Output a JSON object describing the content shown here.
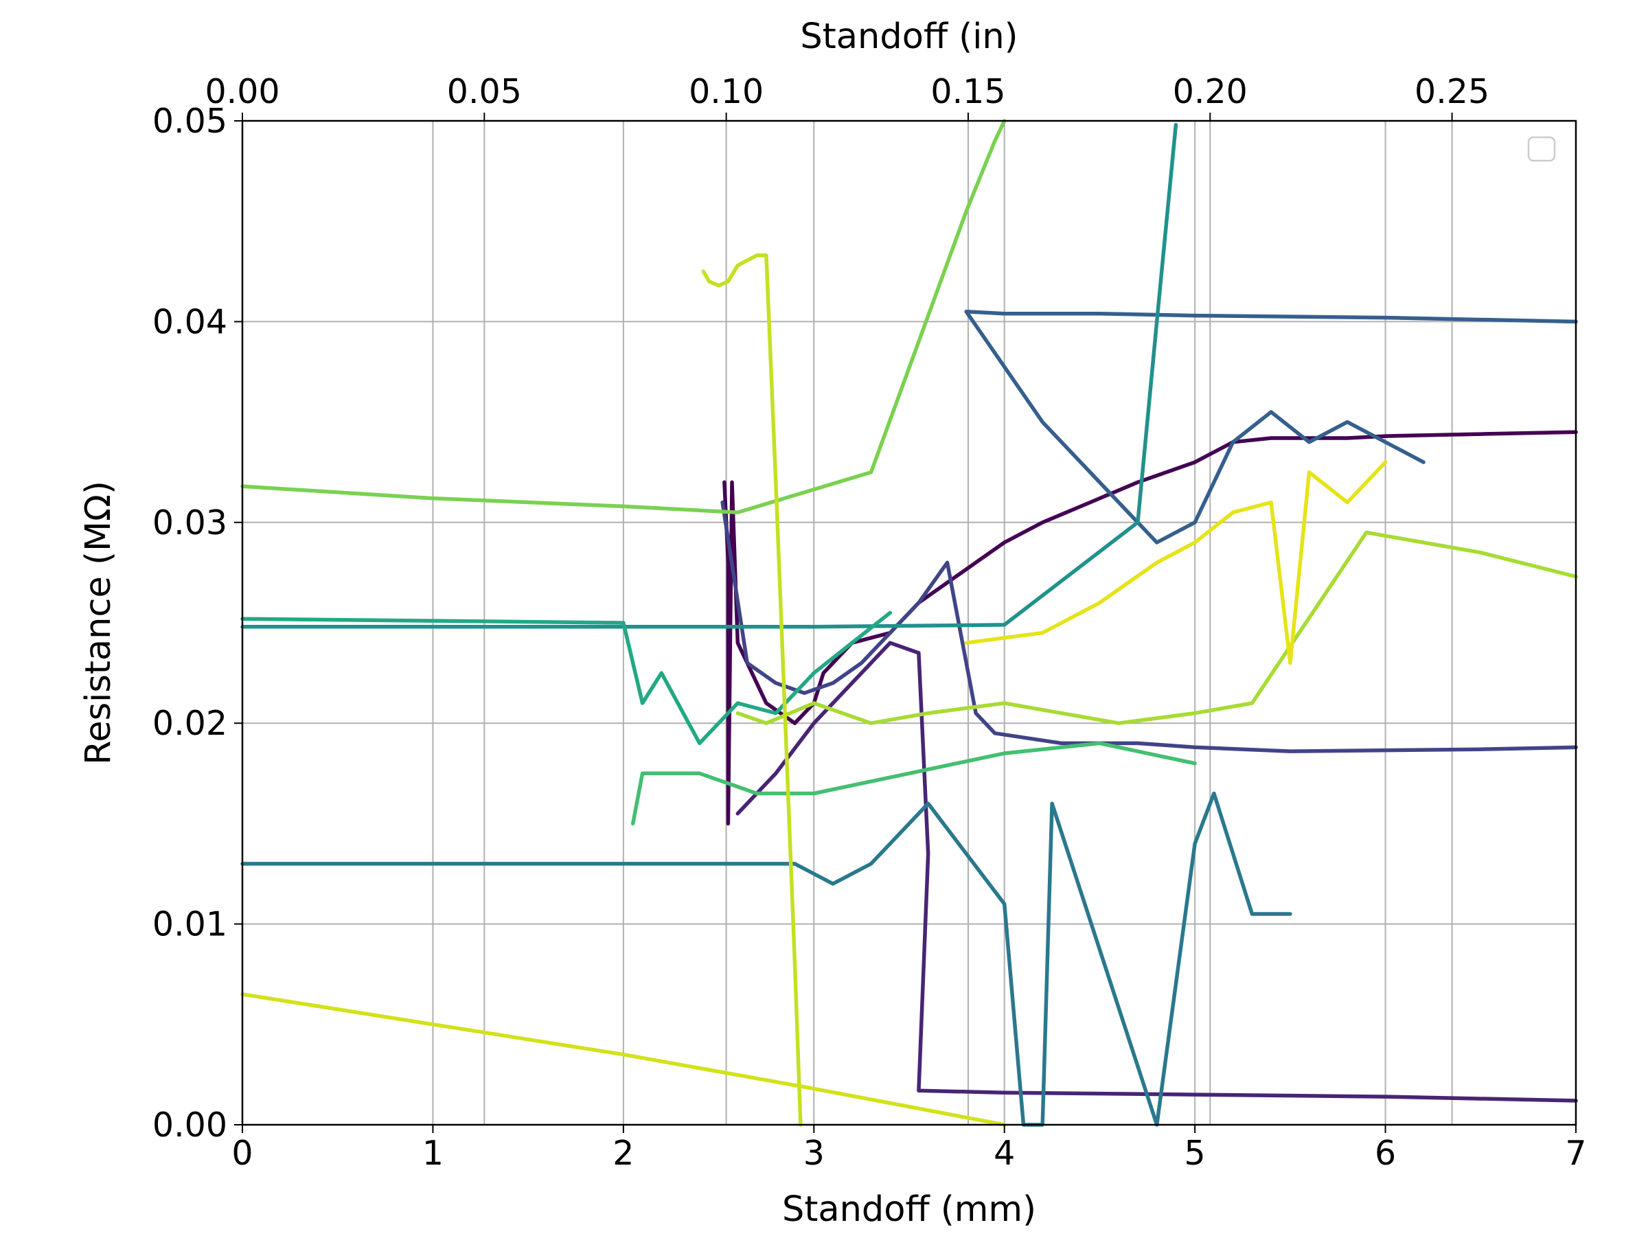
{
  "chart_data": {
    "type": "line",
    "title": "",
    "xlabel": "Standoff (mm)",
    "x2label": "Standoff (in)",
    "ylabel": "Resistance (MΩ)",
    "xlim": [
      0,
      7
    ],
    "ylim": [
      0,
      0.05
    ],
    "x2lim": [
      0,
      0.2756
    ],
    "xticks": [
      "0",
      "1",
      "2",
      "3",
      "4",
      "5",
      "6",
      "7"
    ],
    "x2ticks": [
      "0.00",
      "0.05",
      "0.10",
      "0.15",
      "0.20",
      "0.25"
    ],
    "yticks": [
      "0.00",
      "0.01",
      "0.02",
      "0.03",
      "0.04",
      "0.05"
    ],
    "grid": true,
    "legend": {
      "placement": "top-right",
      "entries": []
    },
    "colormap": "viridis",
    "series": [
      {
        "color": "#440154",
        "x": [
          2.53,
          2.55,
          2.55,
          2.57,
          2.6,
          2.75,
          2.9,
          3.0,
          3.05,
          3.2,
          3.4,
          3.55,
          3.7,
          3.85,
          4.0,
          4.2,
          4.45,
          4.7,
          5.0,
          5.2,
          5.4,
          5.6,
          5.8,
          6.0,
          6.5,
          7.0
        ],
        "y": [
          0.032,
          0.028,
          0.015,
          0.032,
          0.024,
          0.021,
          0.02,
          0.021,
          0.0225,
          0.024,
          0.0245,
          0.026,
          0.027,
          0.028,
          0.029,
          0.03,
          0.031,
          0.032,
          0.033,
          0.034,
          0.0342,
          0.0342,
          0.0342,
          0.0343,
          0.0344,
          0.0345
        ]
      },
      {
        "color": "#482475",
        "x": [
          2.6,
          2.8,
          3.0,
          3.2,
          3.4,
          3.55,
          3.6,
          3.55,
          4.0,
          5.0,
          6.0,
          7.0
        ],
        "y": [
          0.0155,
          0.0175,
          0.02,
          0.022,
          0.024,
          0.0235,
          0.0135,
          0.0017,
          0.0016,
          0.0015,
          0.0014,
          0.0012
        ]
      },
      {
        "color": "#414487",
        "x": [
          2.52,
          2.65,
          2.8,
          2.95,
          3.1,
          3.25,
          3.4,
          3.55,
          3.7,
          3.85,
          3.95,
          4.3,
          4.7,
          5.0,
          5.5,
          6.5,
          7.0
        ],
        "y": [
          0.031,
          0.023,
          0.022,
          0.0215,
          0.022,
          0.023,
          0.0245,
          0.026,
          0.028,
          0.0205,
          0.0195,
          0.019,
          0.019,
          0.0188,
          0.0186,
          0.0187,
          0.0188
        ]
      },
      {
        "color": "#355f8d",
        "x": [
          7.0,
          6.0,
          5.0,
          4.5,
          4.0,
          3.8,
          4.2,
          4.5,
          4.8,
          5.0,
          5.1,
          5.2,
          5.4,
          5.6,
          5.8,
          6.0,
          6.2
        ],
        "y": [
          0.04,
          0.0402,
          0.0403,
          0.0404,
          0.0404,
          0.0405,
          0.035,
          0.032,
          0.029,
          0.03,
          0.032,
          0.034,
          0.0355,
          0.034,
          0.035,
          0.034,
          0.033
        ]
      },
      {
        "color": "#2a788e",
        "x": [
          0.0,
          1.0,
          2.0,
          2.7,
          2.9,
          3.0,
          3.1,
          3.3,
          3.6,
          4.0,
          4.1,
          4.2,
          4.25,
          4.8,
          5.0,
          5.1,
          5.3,
          5.5
        ],
        "y": [
          0.013,
          0.013,
          0.013,
          0.013,
          0.013,
          0.0125,
          0.012,
          0.013,
          0.016,
          0.011,
          0.0,
          0.0,
          0.016,
          0.0,
          0.014,
          0.0165,
          0.0105,
          0.0105
        ]
      },
      {
        "color": "#21918c",
        "x": [
          0.0,
          1.0,
          2.0,
          3.0,
          4.0,
          4.7,
          4.8,
          4.9
        ],
        "y": [
          0.0248,
          0.0248,
          0.0248,
          0.0248,
          0.0249,
          0.03,
          0.04,
          0.0498
        ]
      },
      {
        "color": "#22a884",
        "x": [
          0.0,
          1.0,
          2.0,
          2.1,
          2.2,
          2.4,
          2.6,
          2.8,
          3.0,
          3.2,
          3.4
        ],
        "y": [
          0.0252,
          0.0251,
          0.025,
          0.021,
          0.0225,
          0.019,
          0.021,
          0.0205,
          0.0225,
          0.024,
          0.0255
        ]
      },
      {
        "color": "#44bf70",
        "x": [
          2.05,
          2.1,
          2.4,
          2.7,
          3.0,
          3.5,
          4.0,
          4.5,
          5.0
        ],
        "y": [
          0.015,
          0.0175,
          0.0175,
          0.0165,
          0.0165,
          0.0175,
          0.0185,
          0.019,
          0.018
        ]
      },
      {
        "color": "#7ad151",
        "x": [
          0.0,
          1.0,
          2.0,
          2.6,
          3.3,
          3.8,
          3.95,
          4.0
        ],
        "y": [
          0.0318,
          0.0312,
          0.0308,
          0.0305,
          0.0325,
          0.0455,
          0.049,
          0.05
        ]
      },
      {
        "color": "#a8db34",
        "x": [
          2.6,
          2.75,
          3.0,
          3.3,
          3.6,
          4.0,
          4.6,
          5.0,
          5.3,
          5.9,
          6.5,
          7.0
        ],
        "y": [
          0.0205,
          0.02,
          0.021,
          0.02,
          0.0205,
          0.021,
          0.02,
          0.0205,
          0.021,
          0.0295,
          0.0285,
          0.0273
        ]
      },
      {
        "color": "#c5e021",
        "x": [
          2.42,
          2.45,
          2.5,
          2.55,
          2.6,
          2.7,
          2.75,
          2.8,
          2.85,
          2.9,
          2.93
        ],
        "y": [
          0.0425,
          0.042,
          0.0418,
          0.042,
          0.0428,
          0.0433,
          0.0433,
          0.032,
          0.02,
          0.008,
          0.0
        ]
      },
      {
        "color": "#d2e21b",
        "x": [
          0.0,
          1.0,
          2.0,
          3.0,
          4.0
        ],
        "y": [
          0.0065,
          0.005,
          0.0035,
          0.0018,
          0.0
        ]
      },
      {
        "color": "#e5e419",
        "x": [
          3.8,
          4.2,
          4.5,
          4.8,
          5.0,
          5.2,
          5.4,
          5.5,
          5.6,
          5.8,
          6.0
        ],
        "y": [
          0.024,
          0.0245,
          0.026,
          0.028,
          0.029,
          0.0305,
          0.031,
          0.023,
          0.0325,
          0.031,
          0.033
        ]
      }
    ]
  }
}
